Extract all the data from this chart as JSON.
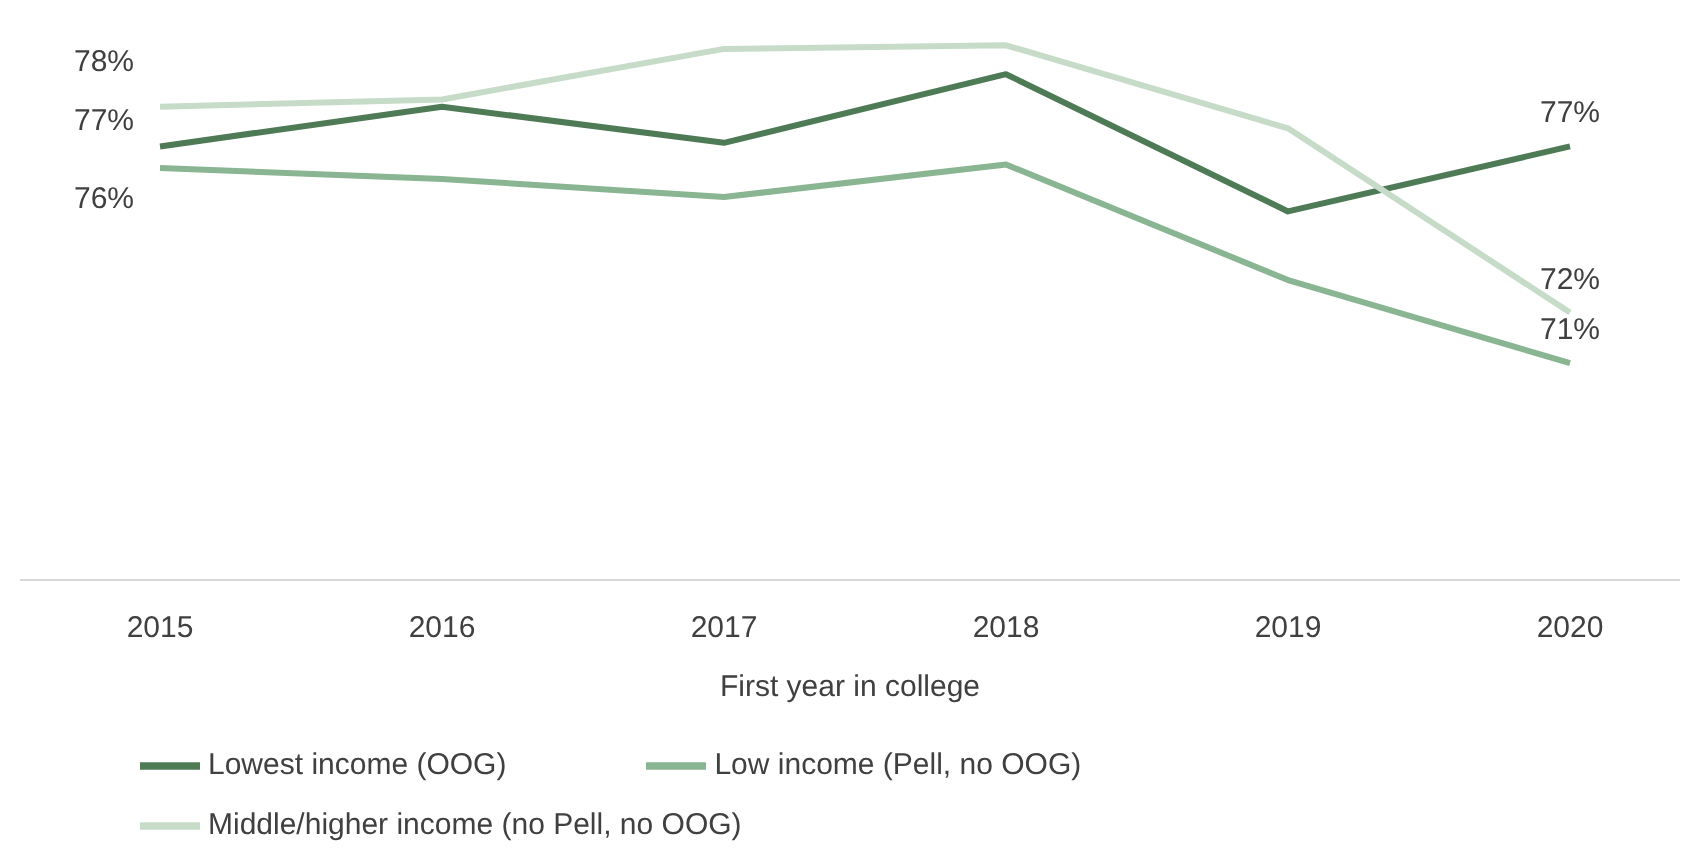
{
  "chart_data": {
    "type": "line",
    "xlabel": "First year in college",
    "categories": [
      "2015",
      "2016",
      "2017",
      "2018",
      "2019",
      "2020"
    ],
    "tick_labels": "x",
    "grid": false,
    "legend": "bottom",
    "marker": "none",
    "line_style": "solid",
    "series": [
      {
        "name": "Lowest income (OOG)",
        "color": "#4e7a56",
        "values": [
          77.0,
          78.1,
          77.1,
          79.0,
          75.2,
          77.0
        ],
        "value_labels": [
          "77%",
          null,
          null,
          null,
          null,
          "77%"
        ]
      },
      {
        "name": "Low income (Pell, no OOG)",
        "color": "#8ab592",
        "values": [
          76.4,
          76.1,
          75.6,
          76.5,
          73.3,
          71.0
        ],
        "value_labels": [
          "76%",
          null,
          null,
          null,
          null,
          "71%"
        ]
      },
      {
        "name": "Middle/higher income (no Pell, no OOG)",
        "color": "#c6dcc8",
        "values": [
          78.1,
          78.3,
          79.7,
          79.8,
          77.5,
          72.4
        ],
        "value_labels": [
          "78%",
          null,
          null,
          null,
          null,
          "72%"
        ]
      }
    ]
  }
}
